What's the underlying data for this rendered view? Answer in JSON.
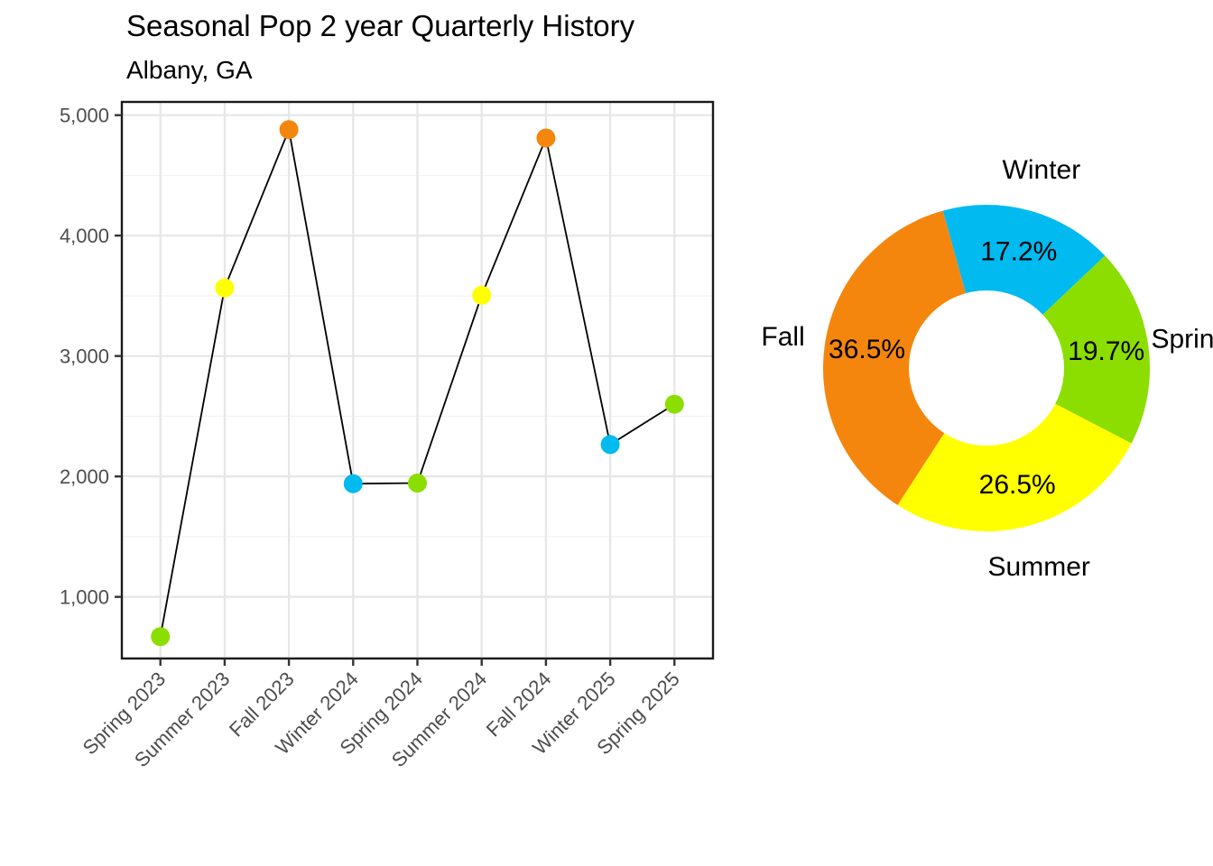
{
  "page": {
    "background": "#FFFFFF"
  },
  "line_chart": {
    "title": "Seasonal Pop 2 year Quarterly History",
    "subtitle": "Albany, GA"
  },
  "chart_data": [
    {
      "type": "line",
      "title": "Seasonal Pop 2 year Quarterly History",
      "subtitle": "Albany, GA",
      "categories": [
        "Spring 2023",
        "Summer 2023",
        "Fall 2023",
        "Winter 2024",
        "Spring 2024",
        "Summer 2024",
        "Fall 2024",
        "Winter 2025",
        "Spring 2025"
      ],
      "values": [
        670,
        3565,
        4880,
        1940,
        1945,
        3505,
        4810,
        2265,
        2600
      ],
      "point_seasons": [
        "Spring",
        "Summer",
        "Fall",
        "Winter",
        "Spring",
        "Summer",
        "Fall",
        "Winter",
        "Spring"
      ],
      "line_color": "#000000",
      "xlabel": "",
      "ylabel": "",
      "ylim": [
        488,
        5110
      ],
      "yticks": [
        1000,
        2000,
        3000,
        4000,
        5000
      ],
      "ytick_labels": [
        "1,000",
        "2,000",
        "3,000",
        "4,000",
        "5,000"
      ],
      "minor_yticks": [
        500,
        1500,
        2500,
        3500,
        4500
      ],
      "grid": "horizontal major+minor, vertical major per category, light gray on white panel, black panel border"
    },
    {
      "type": "pie",
      "subtype": "donut",
      "labels": [
        "Winter",
        "Spring",
        "Summer",
        "Fall"
      ],
      "values": [
        17.2,
        19.7,
        26.5,
        36.5
      ],
      "percent_labels": [
        "17.2%",
        "19.7%",
        "26.5%",
        "36.5%"
      ],
      "start_angle_deg_clockwise_from_top": -15.5,
      "inner_radius_ratio": 0.475,
      "legend": "none, direct season labels outside ring and percent labels inside ring"
    }
  ],
  "colors": {
    "Spring": "#8BDE00",
    "Summer": "#FFFF00",
    "Fall": "#F5860D",
    "Winter": "#00BAF0",
    "grid_major": "#E6E6E6",
    "grid_minor": "#F2F2F2",
    "panel_border": "#1A1A1A",
    "axis_tick": "#333333",
    "tick_label": "#4D4D4D",
    "title_text": "#000000"
  }
}
